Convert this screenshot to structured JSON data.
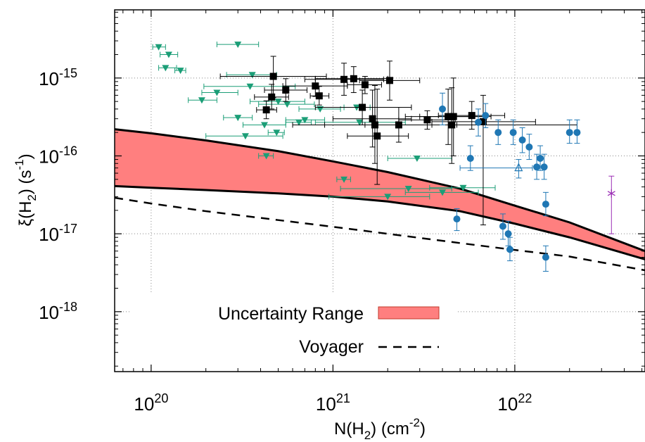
{
  "chart_data": {
    "type": "scatter",
    "xscale": "log",
    "yscale": "log",
    "xlim": [
      6.3e+19,
      5.2e+22
    ],
    "ylim": [
      1.7e-19,
      7.5e-15
    ],
    "grid": true,
    "legend_position": "bottom-left",
    "xlabel": {
      "base": "N(H",
      "sub": "2",
      "mid": ") (cm",
      "sup": "-2",
      "tail": ")"
    },
    "ylabel": {
      "base": "ξ(H",
      "sub": "2",
      "mid": ") (s",
      "sup": "-1",
      "tail": ")"
    },
    "x_ticks": [
      {
        "value": 1e+20,
        "base": "10",
        "exp": "20"
      },
      {
        "value": 1e+21,
        "base": "10",
        "exp": "21"
      },
      {
        "value": 1e+22,
        "base": "10",
        "exp": "22"
      }
    ],
    "y_ticks": [
      {
        "value": 1e-15,
        "base": "10",
        "exp": "-15"
      },
      {
        "value": 1e-16,
        "base": "10",
        "exp": "-16"
      },
      {
        "value": 1e-17,
        "base": "10",
        "exp": "-17"
      },
      {
        "value": 1e-18,
        "base": "10",
        "exp": "-18"
      }
    ],
    "colors": {
      "band_fill": "#ff7f7f",
      "band_edge": "#000000",
      "green": "#1b9e77",
      "black": "#000000",
      "blue": "#1f77b4",
      "purple": "#9b2fb5"
    },
    "uncertainty_band": {
      "label": "Uncertainty Range",
      "x": [
        6.3e+19,
        1e+20,
        2e+20,
        5e+20,
        1e+21,
        2e+21,
        5e+21,
        1e+22,
        2e+22,
        5.2e+22
      ],
      "upper": [
        2.2e-16,
        1.95e-16,
        1.58e-16,
        1.15e-16,
        8.5e-17,
        6.2e-17,
        3.8e-17,
        2.3e-17,
        1.4e-17,
        6e-18
      ],
      "lower": [
        4.1e-17,
        3.9e-17,
        3.65e-17,
        3.3e-17,
        3e-17,
        2.6e-17,
        1.95e-17,
        1.35e-17,
        9e-18,
        4.7e-18
      ]
    },
    "voyager": {
      "label": "Voyager",
      "x": [
        6.3e+19,
        1e+20,
        2e+20,
        5e+20,
        1e+21,
        2e+21,
        5e+21,
        1e+22,
        2e+22,
        5.2e+22
      ],
      "y": [
        2.9e-17,
        2.45e-17,
        1.95e-17,
        1.5e-17,
        1.23e-17,
        1e-17,
        7.6e-18,
        6.2e-18,
        5.1e-18,
        3.4e-18
      ]
    },
    "series": [
      {
        "marker": "triangle-down",
        "color": "#1b9e77",
        "points": [
          {
            "x": 1.1e+20,
            "y": 2.5e-15,
            "xerr": [
              1.02e+20,
              1.2e+20
            ]
          },
          {
            "x": 1.25e+20,
            "y": 2e-15,
            "xerr": [
              1.12e+20,
              1.4e+20
            ]
          },
          {
            "x": 1.2e+20,
            "y": 1.35e-15,
            "xerr": [
              1.1e+20,
              1.38e+20
            ]
          },
          {
            "x": 1.45e+20,
            "y": 1.25e-15,
            "xerr": [
              1.35e+20,
              1.55e+20
            ]
          },
          {
            "x": 3e+20,
            "y": 2.7e-15,
            "xerr": [
              2.3e+20,
              3.9e+20
            ]
          },
          {
            "x": 3.6e+20,
            "y": 1.1e-15,
            "xerr": [
              2.6e+20,
              4.9e+20
            ]
          },
          {
            "x": 3.5e+20,
            "y": 7.8e-16,
            "xerr": [
              1.95e+20,
              6.2e+20
            ]
          },
          {
            "x": 2.3e+20,
            "y": 6.5e-16,
            "xerr": [
              1.9e+20,
              3e+20
            ]
          },
          {
            "x": 1.9e+20,
            "y": 5.2e-16,
            "xerr": [
              1.6e+20,
              2.3e+20
            ]
          },
          {
            "x": 5e+20,
            "y": 5e-16,
            "xerr": [
              3.5e+20,
              7e+20
            ]
          },
          {
            "x": 5.6e+20,
            "y": 4.6e-16,
            "xerr": [
              3.9e+20,
              7.9e+20
            ]
          },
          {
            "x": 3e+20,
            "y": 3.1e-16,
            "xerr": [
              2.5e+20,
              3.6e+20
            ]
          },
          {
            "x": 4.2e+20,
            "y": 2.5e-16,
            "xerr": [
              3.2e+20,
              5.5e+20
            ]
          },
          {
            "x": 6.5e+20,
            "y": 2.7e-16,
            "xerr": [
              5.5e+20,
              7.6e+20
            ]
          },
          {
            "x": 7e+20,
            "y": 2.9e-16,
            "xerr": [
              5.5e+20,
              9e+20
            ]
          },
          {
            "x": 4.9e+20,
            "y": 2e-16,
            "xerr": [
              4.4e+20,
              5.4e+20
            ]
          },
          {
            "x": 3.3e+20,
            "y": 1.8e-16,
            "xerr": [
              2e+20,
              5.3e+20
            ]
          },
          {
            "x": 4.3e+20,
            "y": 1e-16,
            "xerr": [
              3.9e+20,
              4.7e+20
            ]
          },
          {
            "x": 1.15e+21,
            "y": 5e-17,
            "xerr": [
              1.05e+21,
              1.25e+21
            ]
          },
          {
            "x": 8.5e+20,
            "y": 4e-16,
            "xerr": [
              6.5e+20,
              1.1e+21
            ]
          },
          {
            "x": 1.35e+21,
            "y": 4.2e-16,
            "xerr": [
              1.15e+21,
              1.6e+21
            ]
          },
          {
            "x": 1.4e+21,
            "y": 2.7e-16,
            "xerr": [
              8e+20,
              2.5e+21
            ]
          },
          {
            "x": 2e+21,
            "y": 3e-17,
            "xerr": [
              9.5e+20,
              3.4e+21
            ]
          },
          {
            "x": 2.6e+21,
            "y": 3.8e-17,
            "xerr": [
              1.1e+21,
              4.5e+21
            ]
          },
          {
            "x": 2.9e+21,
            "y": 9.3e-17,
            "xerr": [
              2e+21,
              4.5e+21
            ]
          },
          {
            "x": 4e+21,
            "y": 3.4e-17,
            "xerr": [
              2.5e+21,
              6.3e+21
            ]
          },
          {
            "x": 5.2e+21,
            "y": 3.9e-17,
            "xerr": [
              3.4e+21,
              7.8e+21
            ]
          }
        ]
      },
      {
        "marker": "square",
        "color": "#000000",
        "points": [
          {
            "x": 4.3e+20,
            "y": 3.9e-16,
            "xerr": [
              3.8e+20,
              4.9e+20
            ],
            "yerr": [
              3e-16,
              5.1e-16
            ]
          },
          {
            "x": 4.6e+20,
            "y": 5.7e-16,
            "xerr": [
              3.7e+20,
              5.7e+20
            ],
            "yerr": [
              4e-16,
              8.3e-16
            ]
          },
          {
            "x": 4.7e+20,
            "y": 1.05e-15,
            "xerr": [
              2.4e+20,
              9.2e+20
            ],
            "yerr": [
              5.6e-16,
              1.9e-15
            ]
          },
          {
            "x": 5.5e+20,
            "y": 7e-16,
            "xerr": [
              4.2e+20,
              7.2e+20
            ],
            "yerr": [
              5e-16,
              9.8e-16
            ]
          },
          {
            "x": 8e+20,
            "y": 7.9e-16,
            "xerr": [
              5.3e+20,
              1.2e+21
            ],
            "yerr": [
              5.8e-16,
              1.05e-15
            ]
          },
          {
            "x": 8.4e+20,
            "y": 5.9e-16,
            "xerr": [
              7.5e+20,
              9.5e+20
            ],
            "yerr": [
              4.5e-16,
              7.8e-16
            ]
          },
          {
            "x": 1.15e+21,
            "y": 9.6e-16,
            "xerr": [
              7e+20,
              1.9e+21
            ],
            "yerr": [
              6e-16,
              1.55e-15
            ]
          },
          {
            "x": 1.3e+21,
            "y": 9.8e-16,
            "xerr": [
              8e+20,
              2e+21
            ],
            "yerr": [
              6.5e-16,
              1.4e-15
            ]
          },
          {
            "x": 1.5e+21,
            "y": 8.2e-16,
            "xerr": [
              1.2e+21,
              1.85e+21
            ],
            "yerr": [
              6.3e-16,
              1.05e-15
            ]
          },
          {
            "x": 1.45e+21,
            "y": 4.2e-16,
            "xerr": [
              8e+20,
              2.7e+21
            ],
            "yerr": [
              2.5e-16,
              7e-16
            ]
          },
          {
            "x": 2.05e+21,
            "y": 9.3e-16,
            "xerr": [
              1.4e+21,
              3e+21
            ],
            "yerr": [
              5.2e-16,
              1.65e-15
            ]
          },
          {
            "x": 1.65e+21,
            "y": 3e-16,
            "xerr": [
              1e+21,
              2.7e+21
            ],
            "yerr": [
              1.3e-16,
              7e-16
            ]
          },
          {
            "x": 1.7e+21,
            "y": 2.5e-16,
            "xerr": [
              6e+20,
              4.8e+21
            ],
            "yerr": [
              8e-17,
              8e-16
            ]
          },
          {
            "x": 1.75e+21,
            "y": 1.8e-16,
            "xerr": [
              1.2e+21,
              2.6e+21
            ],
            "yerr": [
              4.3e-17,
              7.2e-16
            ]
          },
          {
            "x": 2.3e+21,
            "y": 2.5e-16,
            "xerr": [
              1.5e+21,
              3.5e+21
            ],
            "yerr": [
              1.5e-16,
              4.2e-16
            ]
          },
          {
            "x": 3.3e+21,
            "y": 2.9e-16,
            "xerr": [
              2.3e+21,
              4.7e+21
            ],
            "yerr": [
              2.2e-16,
              3.8e-16
            ]
          },
          {
            "x": 4.3e+21,
            "y": 3.2e-16,
            "xerr": [
              2.5e+21,
              7.4e+21
            ],
            "yerr": [
              1.4e-16,
              7.2e-16
            ]
          },
          {
            "x": 4.6e+21,
            "y": 3.2e-16,
            "xerr": [
              3e+21,
              7e+21
            ],
            "yerr": [
              1e-16,
              1e-15
            ]
          },
          {
            "x": 4.5e+21,
            "y": 2.5e-16,
            "xerr": [
              9e+20,
              2.2e+22
            ],
            "yerr": [
              8e-17,
              7.5e-16
            ]
          },
          {
            "x": 5.8e+21,
            "y": 3.3e-16,
            "xerr": [
              3.8e+21,
              8.8e+21
            ],
            "yerr": [
              2.2e-16,
              5e-16
            ]
          },
          {
            "x": 6.7e+21,
            "y": 2.75e-16,
            "xerr": [
              3.5e+21,
              1.3e+22
            ],
            "yerr": [
              1.3e-17,
              6e-16
            ]
          }
        ]
      },
      {
        "marker": "circle",
        "color": "#1f77b4",
        "points": [
          {
            "x": 4e+21,
            "y": 4e-16,
            "yerr": [
              2.5e-16,
              6.4e-16
            ]
          },
          {
            "x": 5.7e+21,
            "y": 9.3e-17,
            "yerr": [
              6.5e-17,
              1.35e-16
            ]
          },
          {
            "x": 6.3e+21,
            "y": 2.7e-16,
            "yerr": [
              1.8e-16,
              4e-16
            ]
          },
          {
            "x": 6.9e+21,
            "y": 3.3e-16,
            "yerr": [
              2.3e-16,
              4.7e-16
            ]
          },
          {
            "x": 8.1e+21,
            "y": 2e-16,
            "yerr": [
              1.4e-16,
              2.9e-16
            ]
          },
          {
            "x": 4.8e+21,
            "y": 1.55e-17,
            "yerr": [
              1.1e-17,
              2.1e-17
            ]
          },
          {
            "x": 9.8e+21,
            "y": 2e-16,
            "yerr": [
              1.4e-16,
              2.9e-16
            ]
          },
          {
            "x": 1.1e+22,
            "y": 1.6e-16,
            "yerr": [
              1.1e-16,
              2.3e-16
            ]
          },
          {
            "x": 1.2e+22,
            "y": 1.3e-16,
            "yerr": [
              9e-17,
              1.9e-16
            ]
          },
          {
            "x": 1.32e+22,
            "y": 7.2e-17,
            "yerr": [
              5e-17,
              1.05e-16
            ]
          },
          {
            "x": 1.38e+22,
            "y": 9.3e-17,
            "yerr": [
              6.5e-17,
              1.35e-16
            ]
          },
          {
            "x": 1.45e+22,
            "y": 7.2e-17,
            "yerr": [
              5e-17,
              1.05e-16
            ]
          },
          {
            "x": 1.48e+22,
            "y": 2.4e-17,
            "yerr": [
              1.7e-17,
              3.4e-17
            ]
          },
          {
            "x": 8.6e+21,
            "y": 1.25e-17,
            "yerr": [
              8.5e-18,
              1.8e-17
            ]
          },
          {
            "x": 9.2e+21,
            "y": 1e-17,
            "yerr": [
              7e-18,
              1.45e-17
            ]
          },
          {
            "x": 9.4e+21,
            "y": 6.3e-18,
            "yerr": [
              4.5e-18,
              9e-18
            ]
          },
          {
            "x": 1.48e+22,
            "y": 5e-18,
            "yerr": [
              3.3e-18,
              7e-18
            ]
          },
          {
            "x": 2e+22,
            "y": 2e-16,
            "yerr": [
              1.45e-16,
              2.9e-16
            ]
          },
          {
            "x": 2.2e+22,
            "y": 2e-16,
            "yerr": [
              1.45e-16,
              2.9e-16
            ]
          }
        ]
      },
      {
        "marker": "triangle-open",
        "color": "#1f77b4",
        "points": [
          {
            "x": 1.05e+22,
            "y": 7e-17,
            "xerr": [
              5e+21,
              1.25e+22
            ],
            "yerr": [
              5.2e-17,
              9e-17
            ]
          }
        ]
      },
      {
        "marker": "asterisk",
        "color": "#9b2fb5",
        "points": [
          {
            "x": 3.4e+22,
            "y": 3.3e-17,
            "yerr": [
              1e-17,
              5.5e-17
            ]
          }
        ]
      }
    ]
  }
}
